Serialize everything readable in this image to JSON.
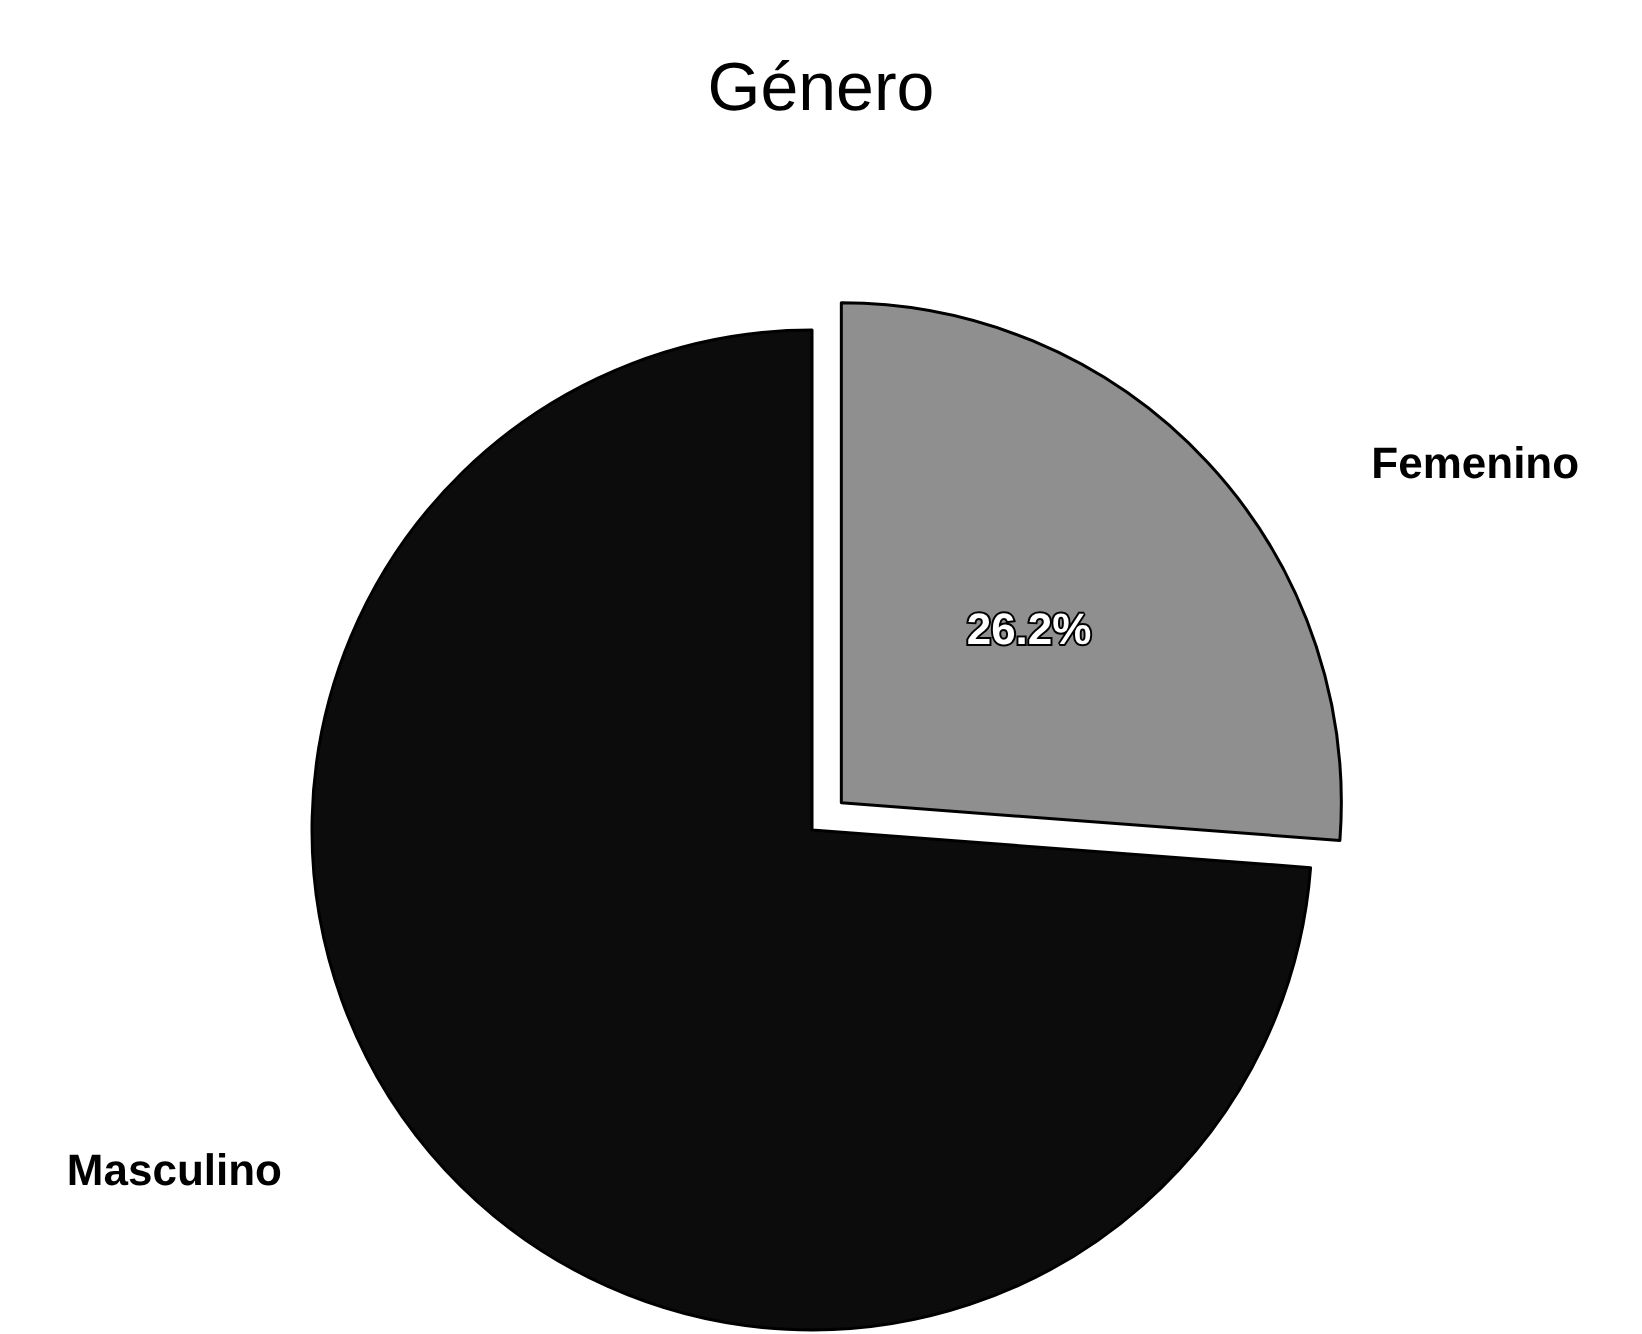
{
  "chart_data": {
    "type": "pie",
    "title": "Género",
    "categories": [
      "Femenino",
      "Masculino"
    ],
    "values": [
      26.2,
      73.8
    ],
    "colors": [
      "#8f8f8f",
      "#0c0c0c"
    ],
    "value_labels": [
      "26.2%",
      null
    ]
  }
}
